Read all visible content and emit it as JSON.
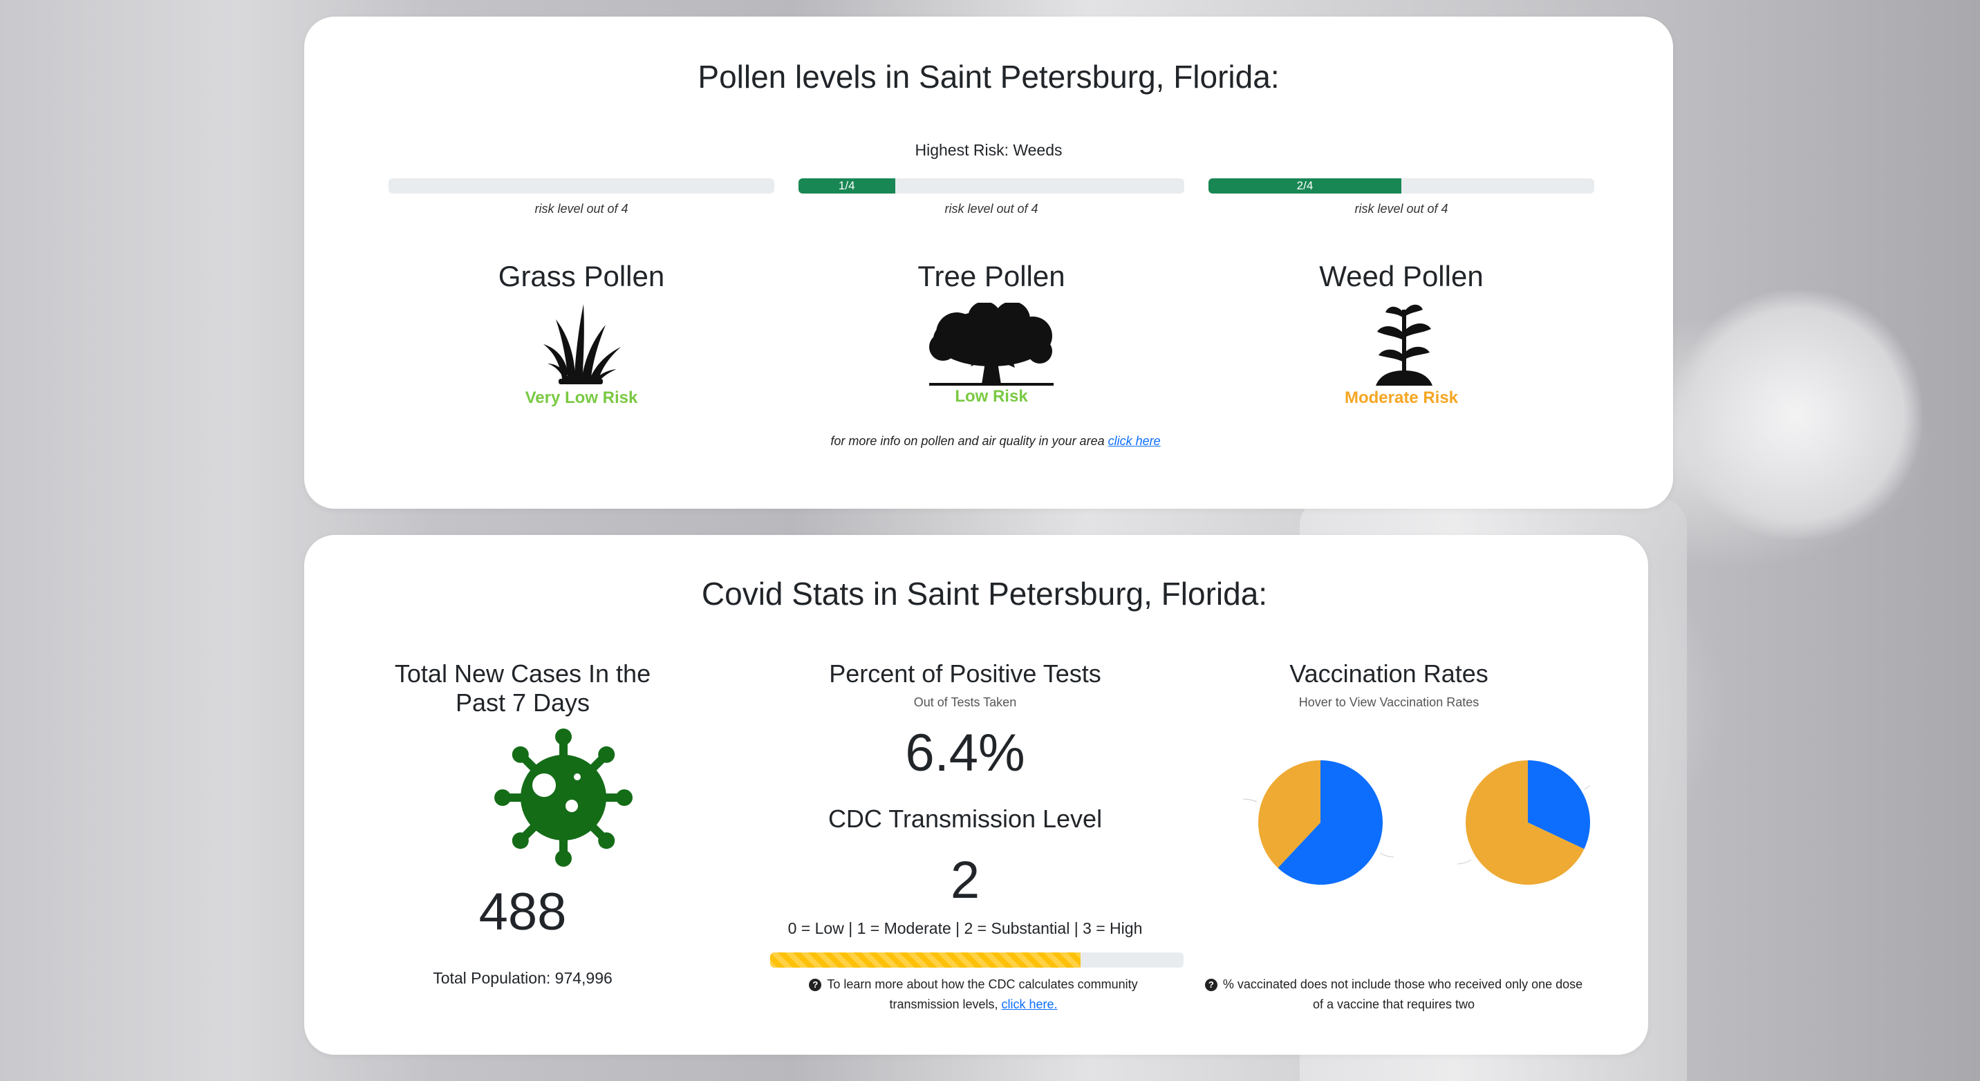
{
  "pollen": {
    "title": "Pollen levels in Saint Petersburg, Florida:",
    "highest_risk": "Highest Risk: Weeds",
    "risk_note": "risk level out of 4",
    "types": [
      {
        "name": "Grass Pollen",
        "level": 0,
        "max": 4,
        "bar_label": "",
        "risk": "Very Low Risk",
        "risk_color": "#7ac943",
        "icon": "grass-icon"
      },
      {
        "name": "Tree Pollen",
        "level": 1,
        "max": 4,
        "bar_label": "1/4",
        "risk": "Low Risk",
        "risk_color": "#7ac943",
        "icon": "tree-icon"
      },
      {
        "name": "Weed Pollen",
        "level": 2,
        "max": 4,
        "bar_label": "2/4",
        "risk": "Moderate Risk",
        "risk_color": "#f5a623",
        "icon": "sprout-icon"
      }
    ],
    "footnote_prefix": "for more info on pollen and air quality in your area ",
    "footnote_link": "click here"
  },
  "covid": {
    "title": "Covid Stats in Saint Petersburg, Florida:",
    "cases": {
      "title": "Total New Cases In the Past 7 Days",
      "value": "488",
      "population": "Total Population: 974,996",
      "icon": "virus-icon",
      "icon_color": "#146c17"
    },
    "positive": {
      "title": "Percent of Positive Tests",
      "sub": "Out of Tests Taken",
      "value": "6.4%"
    },
    "cdc": {
      "title": "CDC Transmission Level",
      "value": "2",
      "legend": "0 = Low | 1 = Moderate | 2 = Substantial | 3 = High",
      "level_fraction": 0.75,
      "note_line1": "To learn more about how the CDC calculates community",
      "note_line2_prefix": "transmission levels, ",
      "note_link": "click here."
    },
    "vaccination": {
      "title": "Vaccination Rates",
      "sub": "Hover to View Vaccination Rates",
      "note_line1": "% vaccinated does not include those who received only one dose",
      "note_line2": "of a vaccine that requires two",
      "pies": [
        {
          "blue_fraction": 0.62,
          "colors": [
            "#0d6efd",
            "#eeaa33"
          ]
        },
        {
          "blue_fraction": 0.32,
          "colors": [
            "#0d6efd",
            "#eeaa33"
          ]
        }
      ]
    }
  }
}
